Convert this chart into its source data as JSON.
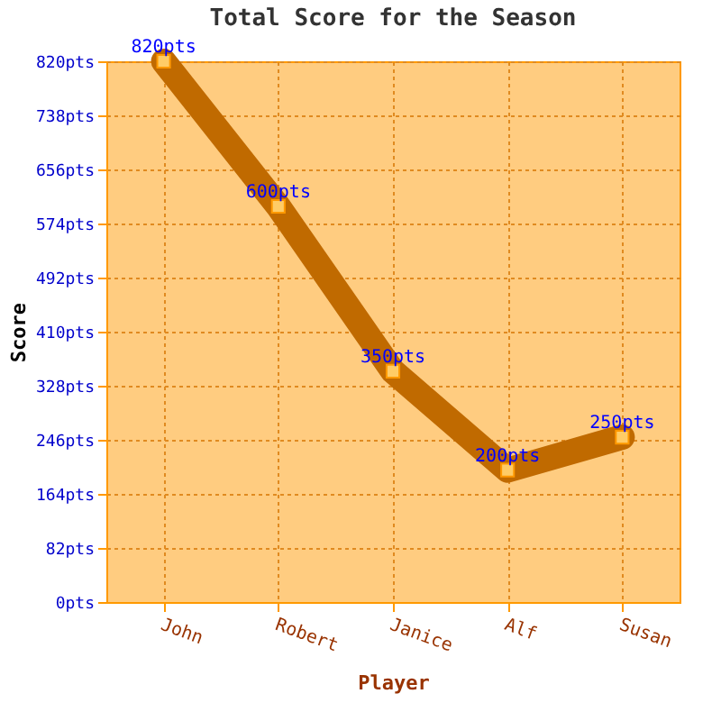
{
  "chart_data": {
    "type": "line",
    "title": "Total Score for the Season",
    "xlabel": "Player",
    "ylabel": "Score",
    "categories": [
      "John",
      "Robert",
      "Janice",
      "Alf",
      "Susan"
    ],
    "series": [
      {
        "color": "#c06a00",
        "values": [
          820,
          600,
          350,
          200,
          250
        ],
        "value_labels": [
          "820pts",
          "600pts",
          "350pts",
          "200pts",
          "250pts"
        ]
      }
    ],
    "ylim": [
      0,
      820
    ],
    "yticks": [
      {
        "value": 0,
        "label": "0pts"
      },
      {
        "value": 82,
        "label": "82pts"
      },
      {
        "value": 164,
        "label": "164pts"
      },
      {
        "value": 246,
        "label": "246pts"
      },
      {
        "value": 328,
        "label": "328pts"
      },
      {
        "value": 410,
        "label": "410pts"
      },
      {
        "value": 492,
        "label": "492pts"
      },
      {
        "value": 574,
        "label": "574pts"
      },
      {
        "value": 656,
        "label": "656pts"
      },
      {
        "value": 738,
        "label": "738pts"
      },
      {
        "value": 820,
        "label": "820pts"
      }
    ],
    "grid": true,
    "marker": "square",
    "line_style": "solid"
  }
}
